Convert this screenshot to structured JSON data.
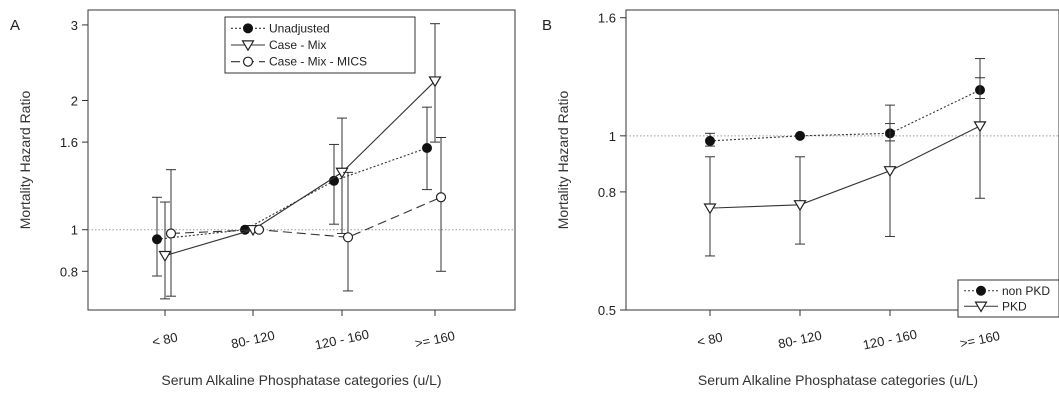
{
  "chart_data": [
    {
      "panel": "A",
      "type": "line",
      "xlabel": "Serum Alkaline Phosphatase categories (u/L)",
      "ylabel": "Mortality Hazard Ratio",
      "y_scale": "log",
      "ylim": [
        0.65,
        3.25
      ],
      "y_ticks": [
        "0.8",
        "1",
        "1.6",
        "2",
        "3"
      ],
      "categories": [
        "< 80",
        "80- 120",
        "120 - 160",
        ">= 160"
      ],
      "reference_line": 1,
      "legend_position": "top-center",
      "series": [
        {
          "name": "Unadjusted",
          "style": "dotted",
          "marker": "filled-circle",
          "values": [
            0.95,
            1.0,
            1.3,
            1.55
          ],
          "lower": [
            0.78,
            1.0,
            1.03,
            1.24
          ],
          "upper": [
            1.19,
            1.0,
            1.58,
            1.93
          ]
        },
        {
          "name": "Case - Mix",
          "style": "solid",
          "marker": "open-triangle",
          "values": [
            0.87,
            1.0,
            1.36,
            2.22
          ],
          "lower": [
            0.69,
            1.0,
            0.98,
            1.6
          ],
          "upper": [
            1.16,
            1.0,
            1.82,
            3.02
          ]
        },
        {
          "name": "Case - Mix - MICS",
          "style": "dashed",
          "marker": "open-circle",
          "values": [
            0.98,
            1.0,
            0.96,
            1.19
          ],
          "lower": [
            0.7,
            1.0,
            0.72,
            0.8
          ],
          "upper": [
            1.38,
            1.0,
            1.36,
            1.64
          ]
        }
      ]
    },
    {
      "panel": "B",
      "type": "line",
      "xlabel": "Serum Alkaline Phosphatase categories (u/L)",
      "ylabel": "Mortality Hazard Ratio",
      "y_scale": "log",
      "ylim": [
        0.5,
        1.65
      ],
      "y_ticks": [
        "0.5",
        "0.8",
        "1",
        "1.6"
      ],
      "categories": [
        "< 80",
        "80- 120",
        "120 - 160",
        ">= 160"
      ],
      "reference_line": 1,
      "legend_position": "bottom-right",
      "series": [
        {
          "name": "non PKD",
          "style": "dotted",
          "marker": "filled-circle",
          "values": [
            0.98,
            1.0,
            1.01,
            1.2
          ],
          "lower": [
            0.96,
            1.0,
            0.98,
            1.16
          ],
          "upper": [
            1.01,
            1.0,
            1.05,
            1.26
          ]
        },
        {
          "name": "PKD",
          "style": "solid",
          "marker": "open-triangle",
          "values": [
            0.75,
            0.76,
            0.87,
            1.04
          ],
          "lower": [
            0.62,
            0.65,
            0.67,
            0.78
          ],
          "upper": [
            0.92,
            0.92,
            1.13,
            1.36
          ]
        }
      ]
    }
  ]
}
